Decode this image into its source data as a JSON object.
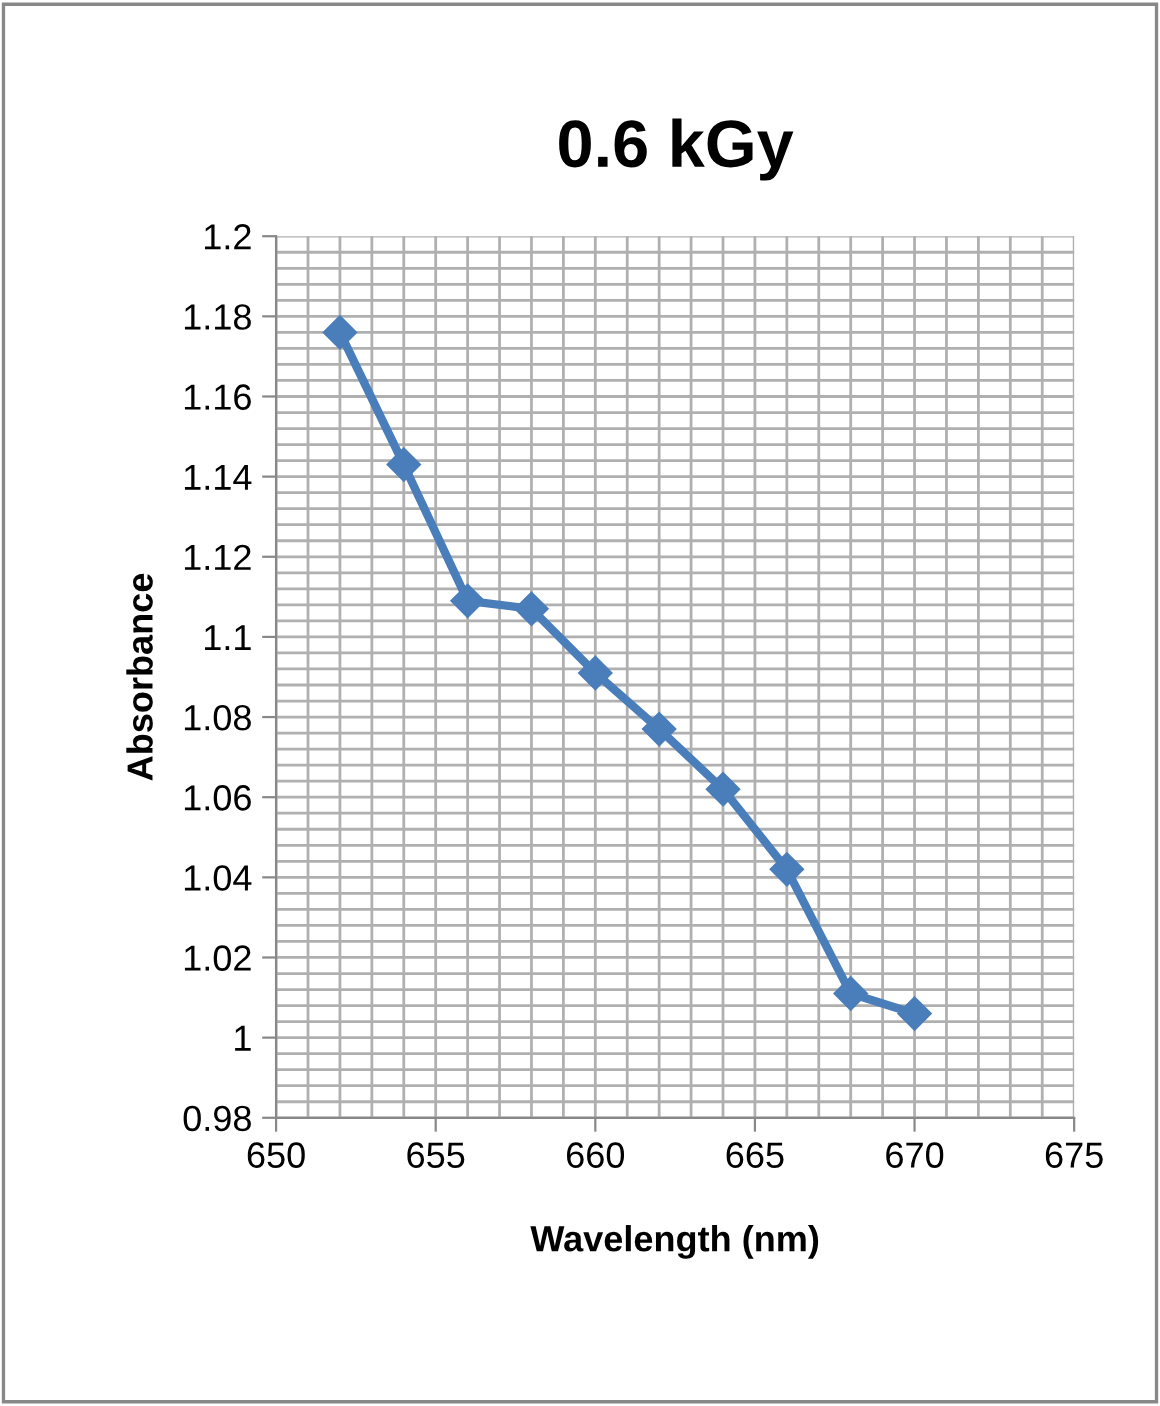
{
  "chart_data": {
    "type": "line",
    "title": "0.6 kGy",
    "xlabel": "Wavelength (nm)",
    "ylabel": "Absorbance",
    "x": [
      652,
      654,
      656,
      658,
      660,
      662,
      664,
      666,
      668,
      670
    ],
    "series": [
      {
        "color": "#4a7ebb",
        "values": [
          1.176,
          1.143,
          1.109,
          1.107,
          1.091,
          1.077,
          1.062,
          1.042,
          1.011,
          1.006
        ]
      }
    ],
    "xlim": [
      650,
      675
    ],
    "xticks": [
      650,
      655,
      660,
      665,
      670,
      675
    ],
    "ylim": [
      0.98,
      1.2
    ],
    "yticks": [
      0.98,
      1,
      1.02,
      1.04,
      1.06,
      1.08,
      1.1,
      1.12,
      1.14,
      1.16,
      1.18,
      1.2
    ],
    "grid": true,
    "marker": "diamond",
    "line_style": "solid"
  }
}
